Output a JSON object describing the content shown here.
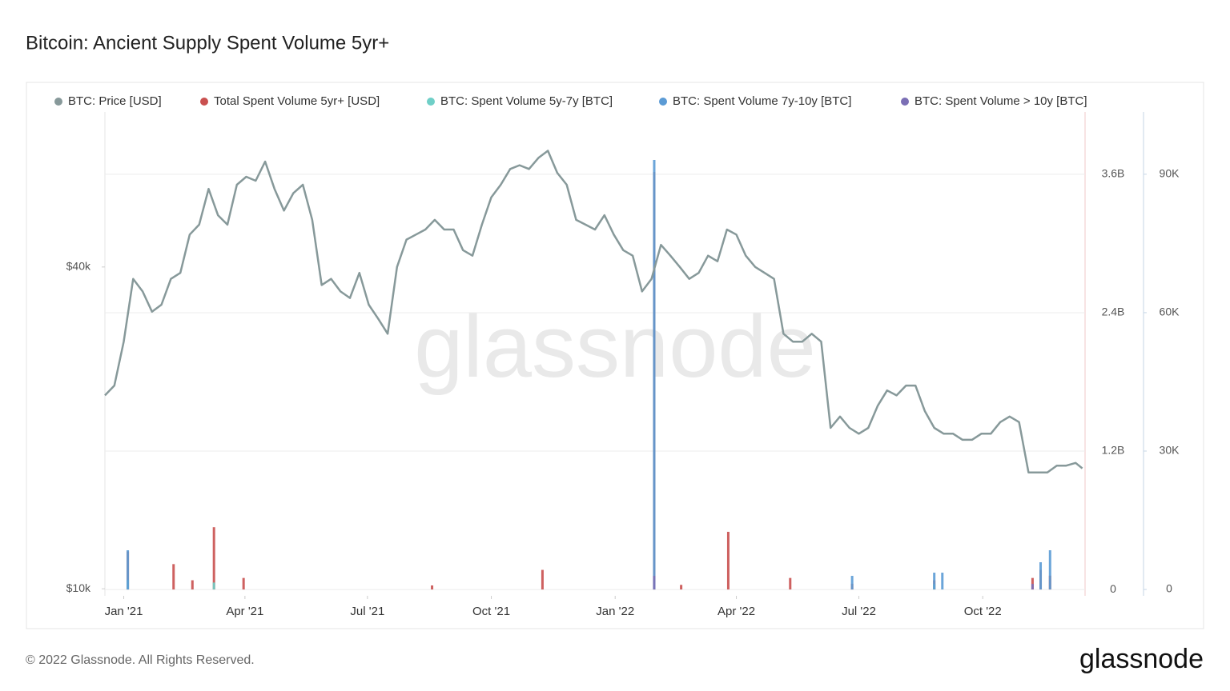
{
  "chart_data": {
    "type": "line",
    "title": "Bitcoin: Ancient Supply Spent Volume 5yr+",
    "watermark": "glassnode",
    "footer": "© 2022 Glassnode. All Rights Reserved.",
    "logo": "glassnode",
    "xlim": [
      0,
      728
    ],
    "xticks": [
      {
        "value": 14,
        "label": "Jan '21"
      },
      {
        "value": 104,
        "label": "Apr '21"
      },
      {
        "value": 195,
        "label": "Jul '21"
      },
      {
        "value": 287,
        "label": "Oct '21"
      },
      {
        "value": 379,
        "label": "Jan '22"
      },
      {
        "value": 469,
        "label": "Apr '22"
      },
      {
        "value": 560,
        "label": "Jul '22"
      },
      {
        "value": 652,
        "label": "Oct '22"
      }
    ],
    "ylim": [
      9700,
      78000
    ],
    "log_scale": true,
    "yticks": [
      {
        "value": 10000,
        "label": "$10k"
      },
      {
        "value": 40000,
        "label": "$40k"
      }
    ],
    "y2lim": [
      -55000000,
      4140000000
    ],
    "y2ticks": [
      0,
      {
        "value": 1200000000,
        "label": "1.2B"
      },
      {
        "value": 2400000000,
        "label": "2.4B"
      },
      {
        "value": 3600000000,
        "label": "3.6B"
      }
    ],
    "y3lim": [
      -1380,
      103500
    ],
    "y3ticks": [
      0,
      {
        "value": 30000,
        "label": "30K"
      },
      {
        "value": 60000,
        "label": "60K"
      },
      {
        "value": 90000,
        "label": "90K"
      }
    ],
    "grid": true,
    "series": [
      {
        "name": "BTC: Price [USD]",
        "color": "#87999a",
        "type": "line",
        "x": [
          0,
          7,
          14,
          21,
          28,
          35,
          42,
          49,
          56,
          63,
          70,
          77,
          84,
          91,
          98,
          105,
          112,
          119,
          126,
          133,
          140,
          147,
          154,
          161,
          168,
          175,
          182,
          189,
          196,
          203,
          210,
          217,
          224,
          231,
          238,
          245,
          252,
          259,
          266,
          273,
          280,
          287,
          294,
          301,
          308,
          315,
          322,
          329,
          336,
          343,
          350,
          357,
          364,
          371,
          378,
          385,
          392,
          399,
          406,
          413,
          420,
          427,
          434,
          441,
          448,
          455,
          462,
          469,
          476,
          483,
          490,
          497,
          504,
          511,
          518,
          525,
          532,
          539,
          546,
          553,
          560,
          567,
          574,
          581,
          588,
          595,
          602,
          609,
          616,
          623,
          630,
          637,
          644,
          651,
          658,
          665,
          672,
          679,
          686,
          693,
          700,
          707,
          714,
          721,
          726
        ],
        "values": [
          23000,
          24000,
          29000,
          38000,
          36000,
          33000,
          34000,
          38000,
          39000,
          46000,
          48000,
          56000,
          50000,
          48000,
          57000,
          59000,
          58000,
          63000,
          56000,
          51000,
          55000,
          57000,
          49000,
          37000,
          38000,
          36000,
          35000,
          39000,
          34000,
          32000,
          30000,
          40000,
          45000,
          46000,
          47000,
          49000,
          47000,
          47000,
          43000,
          42000,
          48000,
          54000,
          57000,
          61000,
          62000,
          61000,
          64000,
          66000,
          60000,
          57000,
          49000,
          48000,
          47000,
          50000,
          46000,
          43000,
          42000,
          36000,
          38000,
          44000,
          42000,
          40000,
          38000,
          39000,
          42000,
          41000,
          47000,
          46000,
          42000,
          40000,
          39000,
          38000,
          30000,
          29000,
          29000,
          30000,
          29000,
          20000,
          21000,
          20000,
          19500,
          20000,
          22000,
          23500,
          23000,
          24000,
          24000,
          21500,
          20000,
          19500,
          19500,
          19000,
          19000,
          19500,
          19500,
          20500,
          21000,
          20500,
          16500,
          16500,
          16500,
          17000,
          17000,
          17200,
          16800
        ]
      },
      {
        "name": "Total Spent Volume 5yr+ [USD]",
        "color": "#c9504f",
        "type": "bar",
        "axis": "y2",
        "x": [
          17,
          51,
          65,
          81,
          103,
          243,
          325,
          408,
          428,
          463,
          509,
          555,
          616,
          689,
          695,
          702
        ],
        "values": [
          330000000,
          220000000,
          80000000,
          540000000,
          100000000,
          35000000,
          170000000,
          3620000000,
          40000000,
          500000000,
          100000000,
          50000000,
          80000000,
          100000000,
          170000000,
          120000000
        ]
      },
      {
        "name": "BTC: Spent Volume 5y-7y [BTC]",
        "color": "#6fcfc7",
        "type": "bar",
        "axis": "y3",
        "x": [
          17,
          81,
          408,
          616
        ],
        "values": [
          2080,
          1500,
          2500,
          1200
        ]
      },
      {
        "name": "BTC: Spent Volume 7y-10y [BTC]",
        "color": "#5b9bd5",
        "type": "bar",
        "axis": "y3",
        "x": [
          17,
          408,
          555,
          616,
          622,
          695,
          702
        ],
        "values": [
          8500,
          93100,
          2950,
          3640,
          3640,
          5900,
          8500
        ]
      },
      {
        "name": "BTC: Spent Volume > 10y [BTC]",
        "color": "#7b6fb5",
        "type": "bar",
        "axis": "y3",
        "x": [
          408,
          689
        ],
        "values": [
          2950,
          1200
        ]
      }
    ]
  }
}
